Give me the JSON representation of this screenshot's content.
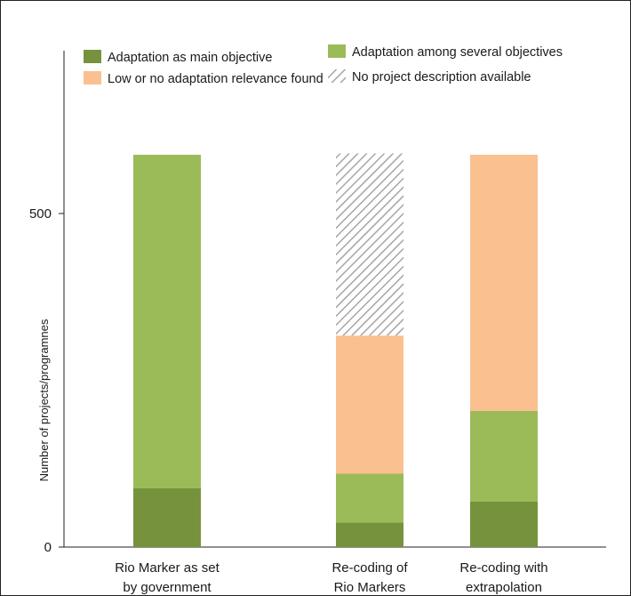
{
  "chart_data": {
    "type": "bar",
    "stacked": true,
    "title": "",
    "ylabel": "Number of projects/programnes",
    "xlabel": "",
    "ylim": [
      0,
      590
    ],
    "yticks": [
      0,
      500
    ],
    "grid": false,
    "legend_position": "top",
    "categories": [
      [
        "Rio Marker as set",
        "by government"
      ],
      [
        "Re-coding of",
        "Rio Markers"
      ],
      [
        "Re-coding with",
        "extrapolation"
      ]
    ],
    "series": [
      {
        "name": "Adaptation as main objective",
        "color": "#76923c",
        "pattern": "solid",
        "values": [
          88,
          37,
          68
        ]
      },
      {
        "name": "Adaptation among several objectives",
        "color": "#9bbb59",
        "pattern": "solid",
        "values": [
          500,
          73,
          136
        ]
      },
      {
        "name": "Low or no adaptation relevance found",
        "color": "#fac090",
        "pattern": "solid",
        "values": [
          0,
          207,
          384
        ]
      },
      {
        "name": "No project description available",
        "color": "#a6a6a6",
        "pattern": "hatch",
        "values": [
          0,
          273,
          0
        ]
      }
    ]
  }
}
